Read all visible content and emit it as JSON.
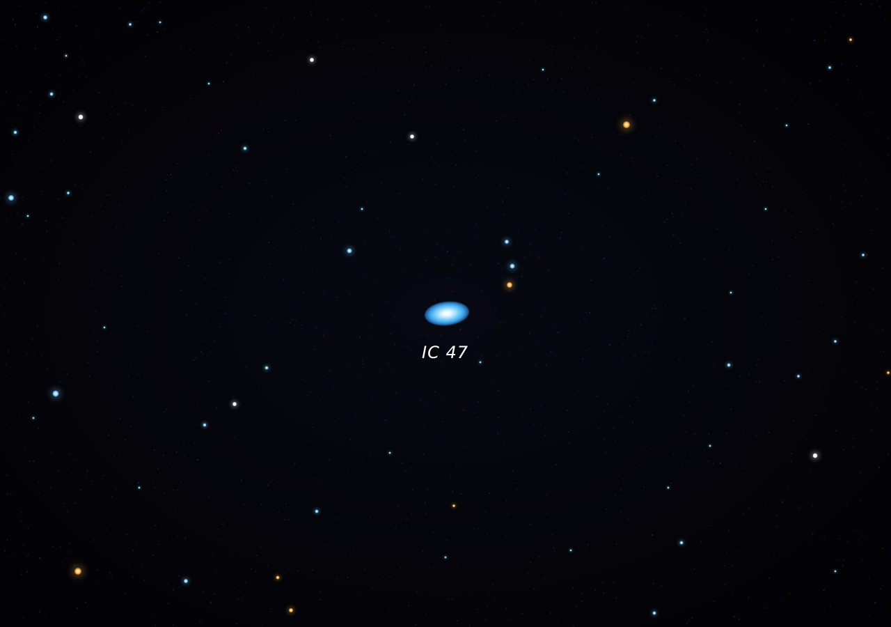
{
  "object_label": "IC 47",
  "colors": {
    "background": "#03030a",
    "star_blue": "#7fd0ff",
    "star_white": "#ffffff",
    "star_orange": "#ffb347",
    "galaxy_core": "#e8f8ff",
    "galaxy_halo": "#3aa0e8"
  }
}
